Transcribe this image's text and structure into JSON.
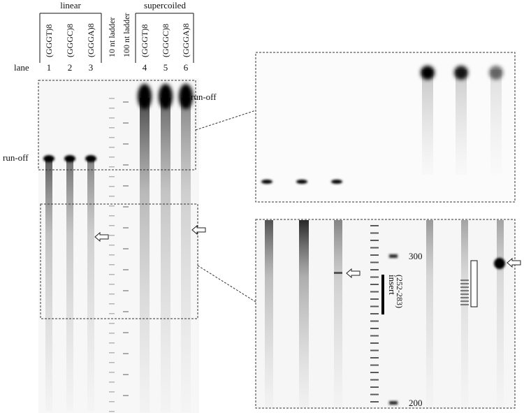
{
  "groups": {
    "linear": "linear",
    "supercoiled": "supercoiled"
  },
  "lane_label": "lane",
  "lanes": [
    {
      "name": "(GGGT)8",
      "number": "1"
    },
    {
      "name": "(GGGC)8",
      "number": "2"
    },
    {
      "name": "(GGGA)8",
      "number": "3"
    },
    {
      "name": "(GGGT)8",
      "number": "4"
    },
    {
      "name": "(GGGC)8",
      "number": "5"
    },
    {
      "name": "(GGGA)8",
      "number": "6"
    }
  ],
  "ladders": [
    "10 nt ladder",
    "100 nt ladder"
  ],
  "run_off_labels": [
    "run-off",
    "run-off"
  ],
  "markers": [
    "300",
    "200"
  ],
  "insert": {
    "label": "insert",
    "range": "(252-283)"
  }
}
